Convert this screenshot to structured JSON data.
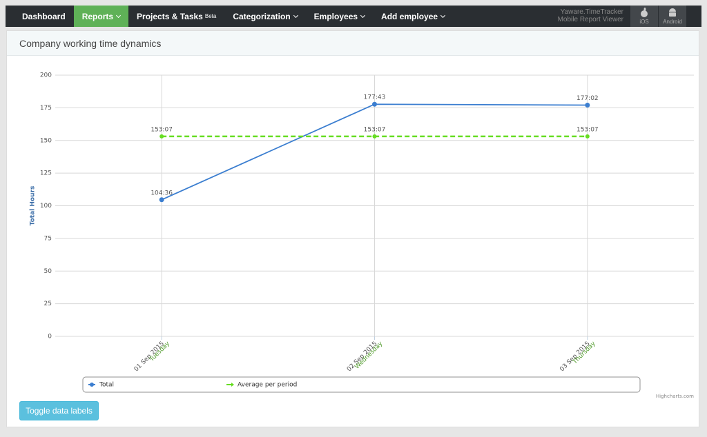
{
  "nav": {
    "items": [
      {
        "label": "Dashboard",
        "active": false,
        "dropdown": false
      },
      {
        "label": "Reports",
        "active": true,
        "dropdown": true
      },
      {
        "label": "Projects & Tasks",
        "sup": "Beta",
        "active": false,
        "dropdown": false
      },
      {
        "label": "Categorization",
        "active": false,
        "dropdown": true
      },
      {
        "label": "Employees",
        "active": false,
        "dropdown": true
      },
      {
        "label": "Add employee",
        "active": false,
        "dropdown": true
      }
    ],
    "app_name": [
      "Yaware.TimeTracker",
      "Mobile Report Viewer"
    ],
    "ios": "iOS",
    "android": "Android"
  },
  "panel_title": "Company working time dynamics",
  "chart_data": {
    "type": "line",
    "y_label": "Total Hours",
    "categories": [
      "01 Sep 2015",
      "02 Sep 2015",
      "03 Sep 2015"
    ],
    "category_sublabels": [
      "Tuesday",
      "Wednesday",
      "Thursday"
    ],
    "ylim": [
      0,
      200
    ],
    "yticks": [
      0,
      25,
      50,
      75,
      100,
      125,
      150,
      175,
      200
    ],
    "grid": true,
    "series": [
      {
        "name": "Total",
        "color": "#3b7ed0",
        "dashed": false,
        "values": [
          104.6,
          177.717,
          177.033
        ],
        "value_labels": [
          "104:36",
          "177:43",
          "177:02"
        ]
      },
      {
        "name": "Average per period",
        "color": "#66dd22",
        "dashed": true,
        "values": [
          153.117,
          153.117,
          153.117
        ],
        "value_labels": [
          "153:07",
          "153:07",
          "153:07"
        ]
      }
    ],
    "credits": "Highcharts.com"
  },
  "button": "Toggle data labels"
}
